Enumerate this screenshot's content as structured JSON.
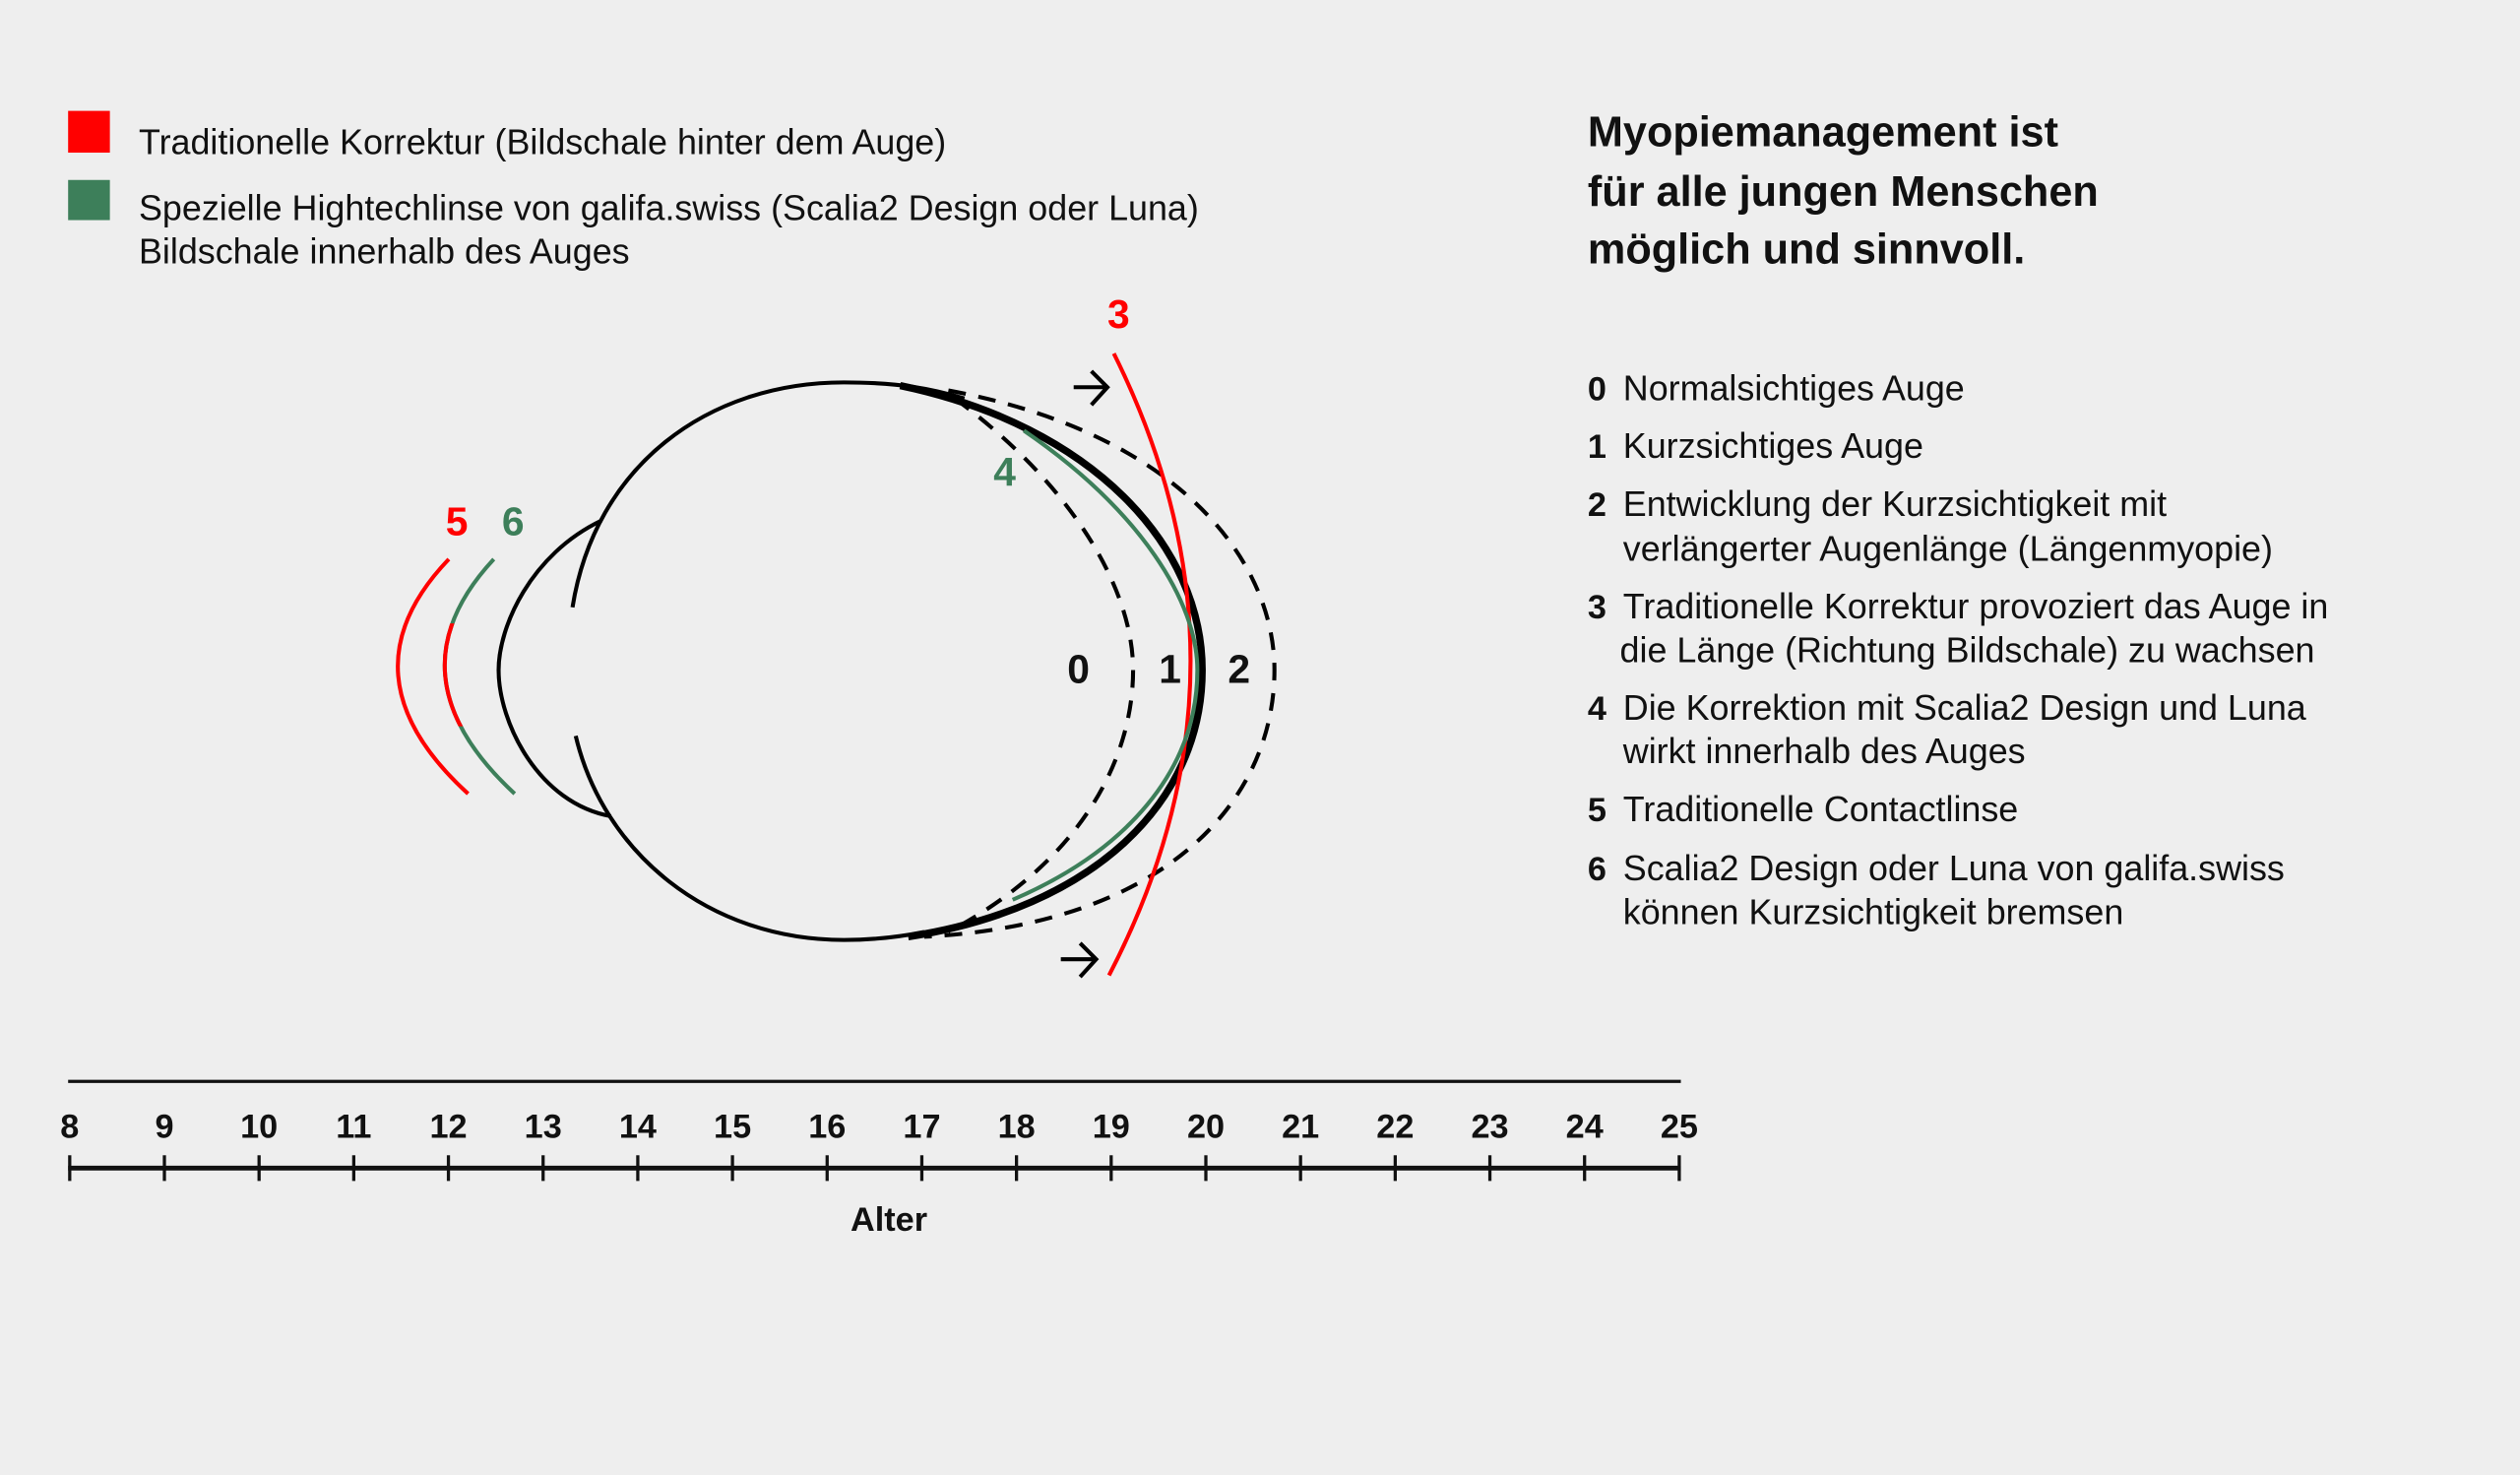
{
  "colors": {
    "red": "#ff0000",
    "green": "#3d7f5a",
    "background": "#eeeeee"
  },
  "legend": [
    {
      "color": "#ff0000",
      "lines": [
        "Traditionelle Korrektur (Bildschale hinter dem Auge)"
      ]
    },
    {
      "color": "#3d7f5a",
      "lines": [
        "Spezielle Hightechlinse von galifa.swiss (Scalia2 Design oder Luna)",
        "Bildschale innerhalb des Auges"
      ]
    }
  ],
  "heading": [
    "Myopiemanagement ist",
    "für alle jungen Menschen",
    "möglich und sinnvoll."
  ],
  "list": [
    {
      "num": "0",
      "lines": [
        "Normalsichtiges Auge"
      ]
    },
    {
      "num": "1",
      "lines": [
        "Kurzsichtiges Auge"
      ]
    },
    {
      "num": "2",
      "lines": [
        "Entwicklung der Kurzsichtigkeit mit",
        "verlängerter Augenlänge (Längenmyopie)"
      ]
    },
    {
      "num": "3",
      "lines": [
        "Traditionelle Korrektur provoziert das Auge in",
        "die Länge (Richtung Bildschale) zu wachsen"
      ]
    },
    {
      "num": "4",
      "lines": [
        "Die Korrektion mit Scalia2 Design und Luna",
        "wirkt innerhalb des Auges"
      ]
    },
    {
      "num": "5",
      "lines": [
        "Traditionelle Contactlinse"
      ]
    },
    {
      "num": "6",
      "lines": [
        "Scalia2 Design oder Luna von galifa.swiss",
        "können Kurzsichtigkeit bremsen"
      ]
    }
  ],
  "diagram_labels": {
    "l0": "0",
    "l1": "1",
    "l2": "2",
    "l3": "3",
    "l4": "4",
    "l5": "5",
    "l6": "6"
  },
  "axis": {
    "label": "Alter",
    "ticks": [
      "8",
      "9",
      "10",
      "11",
      "12",
      "13",
      "14",
      "15",
      "16",
      "17",
      "18",
      "19",
      "20",
      "21",
      "22",
      "23",
      "24",
      "25"
    ]
  }
}
